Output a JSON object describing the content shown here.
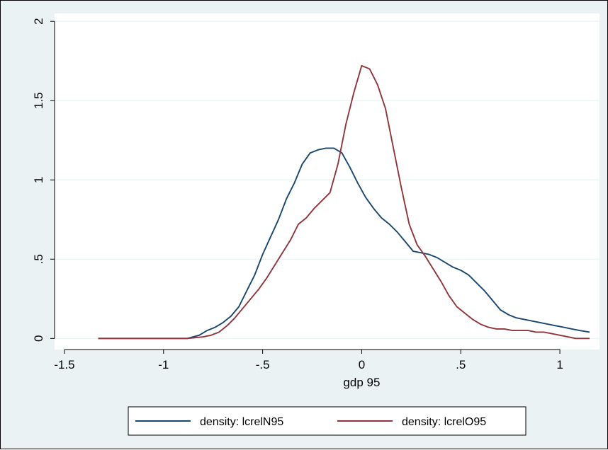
{
  "chart_data": {
    "type": "line",
    "title": "",
    "xlabel": "gdp 95",
    "ylabel": "",
    "xlim": [
      -1.55,
      1.2
    ],
    "ylim": [
      -0.07,
      2.05
    ],
    "xticks": [
      -1.5,
      -1,
      -0.5,
      0,
      0.5,
      1
    ],
    "xtick_labels": [
      "-1.5",
      "-1",
      "-.5",
      "0",
      ".5",
      "1"
    ],
    "yticks": [
      0,
      0.5,
      1,
      1.5,
      2
    ],
    "ytick_labels": [
      "0",
      ".5",
      "1",
      "1.5",
      "2"
    ],
    "grid": true,
    "legend_position": "bottom",
    "colors": {
      "background": "#eaf2f3",
      "plot_area": "#ffffff",
      "grid": "#eaf2f3",
      "series_1": "#1a476f",
      "series_2": "#90353b"
    },
    "series": [
      {
        "name": "density: lcrelN95",
        "x": [
          -1.33,
          -0.88,
          -0.82,
          -0.78,
          -0.74,
          -0.7,
          -0.66,
          -0.62,
          -0.58,
          -0.54,
          -0.5,
          -0.46,
          -0.42,
          -0.38,
          -0.34,
          -0.3,
          -0.26,
          -0.22,
          -0.18,
          -0.14,
          -0.1,
          -0.06,
          -0.02,
          0.02,
          0.06,
          0.1,
          0.14,
          0.18,
          0.22,
          0.26,
          0.3,
          0.34,
          0.38,
          0.42,
          0.46,
          0.5,
          0.54,
          0.58,
          0.62,
          0.66,
          0.7,
          0.74,
          0.78,
          0.82,
          0.86,
          0.9,
          0.94,
          0.98,
          1.02,
          1.06,
          1.1,
          1.15
        ],
        "y": [
          0.0,
          0.0,
          0.02,
          0.05,
          0.07,
          0.1,
          0.14,
          0.2,
          0.3,
          0.4,
          0.53,
          0.64,
          0.75,
          0.88,
          0.98,
          1.1,
          1.17,
          1.19,
          1.2,
          1.2,
          1.17,
          1.08,
          0.98,
          0.89,
          0.82,
          0.76,
          0.72,
          0.67,
          0.61,
          0.55,
          0.54,
          0.53,
          0.51,
          0.48,
          0.45,
          0.43,
          0.4,
          0.35,
          0.3,
          0.24,
          0.18,
          0.15,
          0.13,
          0.12,
          0.11,
          0.1,
          0.09,
          0.08,
          0.07,
          0.06,
          0.05,
          0.04
        ]
      },
      {
        "name": "density: lcrelO95",
        "x": [
          -1.33,
          -0.88,
          -0.8,
          -0.76,
          -0.72,
          -0.68,
          -0.64,
          -0.6,
          -0.56,
          -0.52,
          -0.48,
          -0.44,
          -0.4,
          -0.36,
          -0.32,
          -0.28,
          -0.24,
          -0.2,
          -0.16,
          -0.12,
          -0.08,
          -0.04,
          0.0,
          0.04,
          0.08,
          0.12,
          0.16,
          0.2,
          0.24,
          0.28,
          0.32,
          0.36,
          0.4,
          0.44,
          0.48,
          0.52,
          0.56,
          0.6,
          0.64,
          0.68,
          0.72,
          0.76,
          0.8,
          0.84,
          0.88,
          0.92,
          0.96,
          1.0,
          1.04,
          1.08,
          1.12,
          1.15
        ],
        "y": [
          0.0,
          0.0,
          0.01,
          0.02,
          0.04,
          0.08,
          0.13,
          0.19,
          0.25,
          0.31,
          0.38,
          0.46,
          0.54,
          0.62,
          0.72,
          0.76,
          0.82,
          0.87,
          0.92,
          1.1,
          1.35,
          1.55,
          1.72,
          1.7,
          1.6,
          1.45,
          1.2,
          0.95,
          0.72,
          0.59,
          0.52,
          0.44,
          0.36,
          0.27,
          0.2,
          0.16,
          0.12,
          0.09,
          0.07,
          0.06,
          0.06,
          0.05,
          0.05,
          0.05,
          0.04,
          0.04,
          0.03,
          0.02,
          0.01,
          0.0,
          0.0,
          0.0
        ]
      }
    ]
  }
}
